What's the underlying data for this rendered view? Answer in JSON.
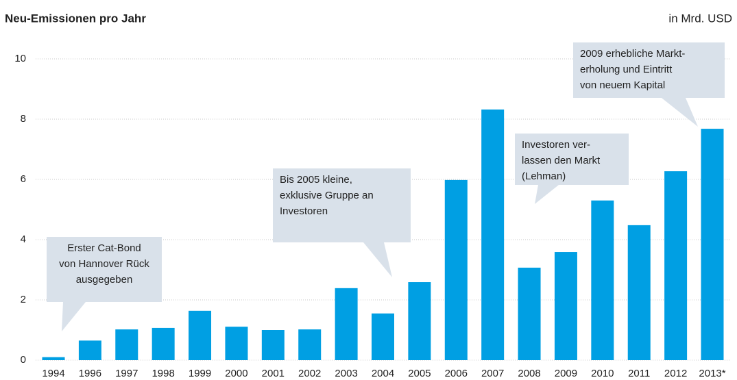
{
  "chart_data": {
    "type": "bar",
    "title": "Neu-Emissionen pro Jahr",
    "unit_label": "in Mrd. USD",
    "categories": [
      "1994",
      "1996",
      "1997",
      "1998",
      "1999",
      "2000",
      "2001",
      "2002",
      "2003",
      "2004",
      "2005",
      "2006",
      "2007",
      "2008",
      "2009",
      "2010",
      "2011",
      "2012",
      "2013*"
    ],
    "values": [
      0.1,
      0.65,
      1.02,
      1.07,
      1.64,
      1.11,
      1.0,
      1.02,
      2.39,
      1.55,
      2.59,
      5.98,
      8.32,
      3.07,
      3.59,
      5.3,
      4.48,
      6.27,
      7.68
    ],
    "color": "#009fe3",
    "ylim": [
      0,
      10
    ],
    "yticks": [
      0,
      2,
      4,
      6,
      8,
      10
    ],
    "grid": true,
    "annotations": [
      {
        "lines": [
          "Erster Cat-Bond",
          "von Hannover Rück",
          "ausgegeben"
        ]
      },
      {
        "lines": [
          "Bis 2005 kleine,",
          "exklusive Gruppe an",
          "Investoren"
        ]
      },
      {
        "lines": [
          "Investoren ver-",
          "lassen den Markt",
          "(Lehman)"
        ]
      },
      {
        "lines": [
          "2009 erhebliche Markt-",
          "erholung und Eintritt",
          "von neuem Kapital"
        ]
      }
    ]
  }
}
